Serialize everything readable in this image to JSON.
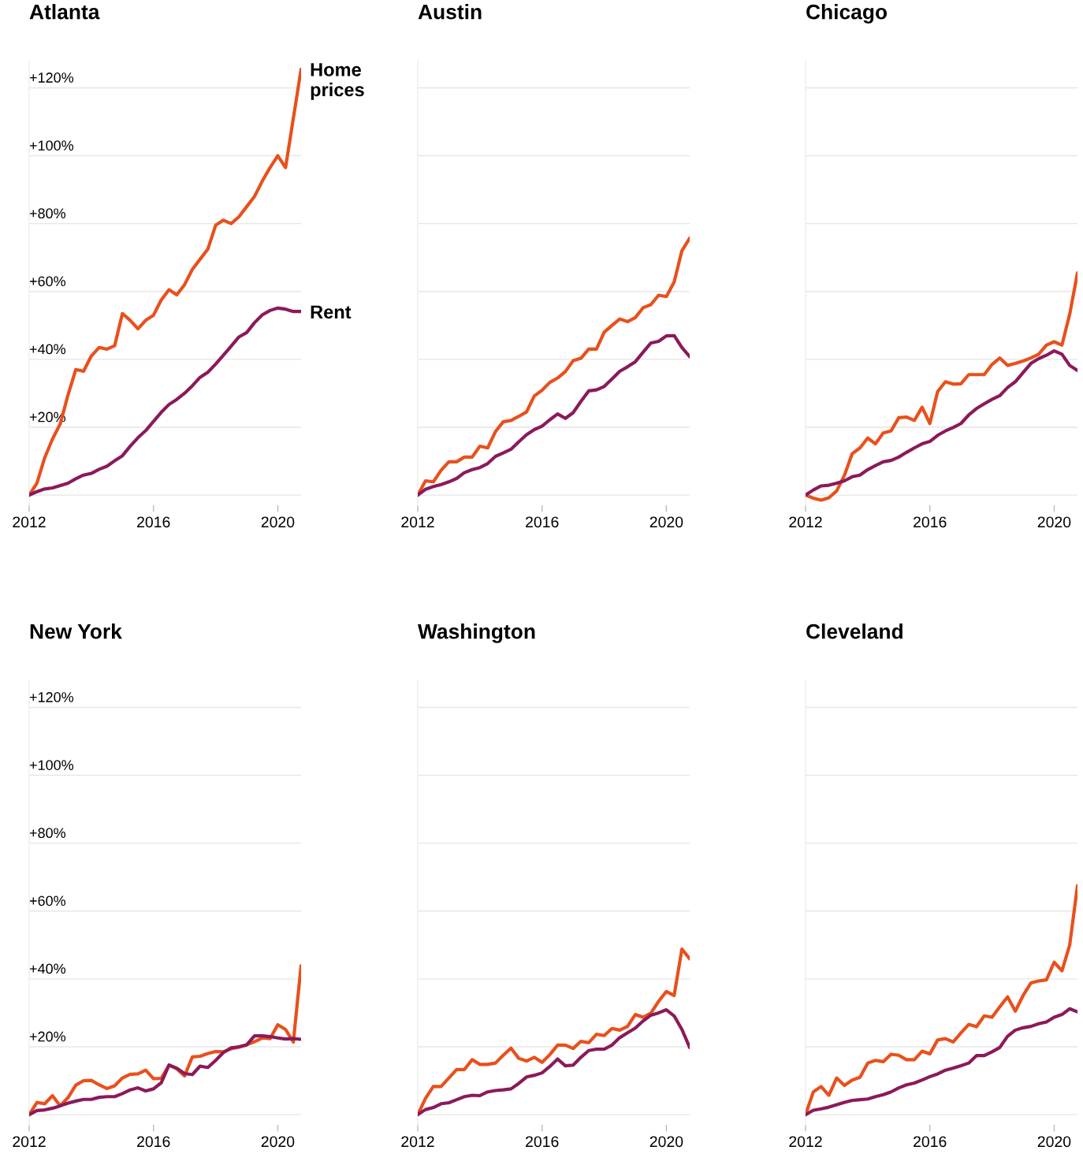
{
  "chart_data": [
    {
      "type": "line",
      "title": "Atlanta",
      "x": [
        2012,
        2012.25,
        2012.5,
        2012.75,
        2013,
        2013.25,
        2013.5,
        2013.75,
        2014,
        2014.25,
        2014.5,
        2014.75,
        2015,
        2015.25,
        2015.5,
        2015.75,
        2016,
        2016.25,
        2016.5,
        2016.75,
        2017,
        2017.25,
        2017.5,
        2017.75,
        2018,
        2018.25,
        2018.5,
        2018.75,
        2019,
        2019.25,
        2019.5,
        2019.75,
        2020,
        2020.25,
        2020.5,
        2020.75
      ],
      "series": [
        {
          "name": "Home\nprices",
          "color": "#e8501c",
          "values": [
            0,
            3.5,
            11,
            16.5,
            21,
            29.5,
            37,
            36.5,
            41,
            43.5,
            43,
            44,
            53.5,
            51.5,
            49,
            51.5,
            53,
            57.5,
            60.5,
            59,
            62,
            66.5,
            69.5,
            72.5,
            79.5,
            81,
            80,
            82,
            85,
            88,
            92.5,
            96.5,
            100,
            96.5,
            111,
            125.5
          ]
        },
        {
          "name": "Rent",
          "color": "#8b1a5a",
          "values": [
            0,
            1,
            1.8,
            2.1,
            2.8,
            3.5,
            4.8,
            5.9,
            6.4,
            7.6,
            8.5,
            10.1,
            11.6,
            14.4,
            16.9,
            19,
            21.7,
            24.4,
            26.7,
            28.2,
            30,
            32.2,
            34.7,
            36.2,
            38.6,
            41.2,
            43.9,
            46.6,
            47.9,
            50.8,
            53.1,
            54.4,
            55.1,
            54.8,
            54.1,
            54.1
          ]
        }
      ],
      "xlim": [
        2012,
        2020.75
      ],
      "xticks": [
        2012,
        2016,
        2020
      ],
      "ylim": [
        -3,
        128
      ],
      "yticks": [
        {
          "value": 0,
          "label": null
        },
        {
          "value": 20,
          "label": "+20%"
        },
        {
          "value": 40,
          "label": "+40%"
        },
        {
          "value": 60,
          "label": "+60%"
        },
        {
          "value": 80,
          "label": "+80%"
        },
        {
          "value": 100,
          "label": "+100%"
        },
        {
          "value": 120,
          "label": "+120%"
        }
      ],
      "grid": "y",
      "legend": false,
      "line_style": "solid",
      "marker": "none"
    },
    {
      "type": "line",
      "title": "Austin",
      "x": [
        2012,
        2012.25,
        2012.5,
        2012.75,
        2013,
        2013.25,
        2013.5,
        2013.75,
        2014,
        2014.25,
        2014.5,
        2014.75,
        2015,
        2015.25,
        2015.5,
        2015.75,
        2016,
        2016.25,
        2016.5,
        2016.75,
        2017,
        2017.25,
        2017.5,
        2017.75,
        2018,
        2018.25,
        2018.5,
        2018.75,
        2019,
        2019.25,
        2019.5,
        2019.75,
        2020,
        2020.25,
        2020.5,
        2020.75
      ],
      "series": [
        {
          "color": "#e8501c",
          "values": [
            0,
            4.2,
            3.9,
            7.3,
            9.8,
            9.8,
            11.2,
            11.2,
            14.4,
            13.9,
            18.7,
            21.6,
            22,
            23.2,
            24.5,
            29.2,
            30.9,
            33.2,
            34.5,
            36.4,
            39.6,
            40.3,
            43,
            43,
            48,
            50,
            51.9,
            51.1,
            52.3,
            55.2,
            56.1,
            58.9,
            58.5,
            62.8,
            72,
            75.7
          ]
        },
        {
          "color": "#8b1a5a",
          "values": [
            0,
            1.7,
            2.5,
            3.1,
            3.9,
            4.9,
            6.6,
            7.5,
            8.1,
            9.3,
            11.4,
            12.4,
            13.5,
            15.7,
            17.8,
            19.3,
            20.3,
            22.2,
            23.9,
            22.6,
            24.3,
            27.6,
            30.7,
            31,
            32,
            34.2,
            36.5,
            37.8,
            39.3,
            42.1,
            44.8,
            45.3,
            46.9,
            47,
            43.5,
            40.8
          ]
        }
      ],
      "xlim": [
        2012,
        2020.75
      ],
      "xticks": [
        2012,
        2016,
        2020
      ],
      "ylim": [
        -3,
        128
      ],
      "yticks": [
        {
          "value": 0,
          "label": null
        },
        {
          "value": 20,
          "label": null
        },
        {
          "value": 40,
          "label": null
        },
        {
          "value": 60,
          "label": null
        },
        {
          "value": 80,
          "label": null
        },
        {
          "value": 100,
          "label": null
        },
        {
          "value": 120,
          "label": null
        }
      ],
      "tick_labels": "x",
      "grid": "y",
      "legend": false,
      "line_style": "solid",
      "marker": "none"
    },
    {
      "type": "line",
      "title": "Chicago",
      "x": [
        2012,
        2012.25,
        2012.5,
        2012.75,
        2013,
        2013.25,
        2013.5,
        2013.75,
        2014,
        2014.25,
        2014.5,
        2014.75,
        2015,
        2015.25,
        2015.5,
        2015.75,
        2016,
        2016.25,
        2016.5,
        2016.75,
        2017,
        2017.25,
        2017.5,
        2017.75,
        2018,
        2018.25,
        2018.5,
        2018.75,
        2019,
        2019.25,
        2019.5,
        2019.75,
        2020,
        2020.25,
        2020.5,
        2020.75
      ],
      "series": [
        {
          "color": "#e8501c",
          "values": [
            0,
            -0.9,
            -1.5,
            -0.8,
            1.2,
            5.8,
            12.2,
            13.9,
            16.8,
            15.1,
            18.3,
            18.9,
            22.8,
            23,
            22,
            25.9,
            21.1,
            30.5,
            33.4,
            32.7,
            32.8,
            35.5,
            35.5,
            35.5,
            38.5,
            40.4,
            38.2,
            38.8,
            39.5,
            40.4,
            41.5,
            44.2,
            45.2,
            44.2,
            53.3,
            65.5
          ]
        },
        {
          "color": "#8b1a5a",
          "values": [
            0,
            1.5,
            2.7,
            2.9,
            3.5,
            4.2,
            5.4,
            5.9,
            7.5,
            8.7,
            9.8,
            10.2,
            11.2,
            12.6,
            13.9,
            15.1,
            15.8,
            17.6,
            18.9,
            19.9,
            21.1,
            23.6,
            25.5,
            26.9,
            28.2,
            29.3,
            31.7,
            33.4,
            36.1,
            38.8,
            40.2,
            41.2,
            42.5,
            41.5,
            38.2,
            36.7
          ]
        }
      ],
      "xlim": [
        2012,
        2020.75
      ],
      "xticks": [
        2012,
        2016,
        2020
      ],
      "ylim": [
        -3,
        128
      ],
      "yticks": [
        {
          "value": 0,
          "label": null
        },
        {
          "value": 20,
          "label": null
        },
        {
          "value": 40,
          "label": null
        },
        {
          "value": 60,
          "label": null
        },
        {
          "value": 80,
          "label": null
        },
        {
          "value": 100,
          "label": null
        },
        {
          "value": 120,
          "label": null
        }
      ],
      "tick_labels": "x",
      "grid": "y",
      "legend": false,
      "line_style": "solid",
      "marker": "none"
    },
    {
      "type": "line",
      "title": "New York",
      "x": [
        2012,
        2012.25,
        2012.5,
        2012.75,
        2013,
        2013.25,
        2013.5,
        2013.75,
        2014,
        2014.25,
        2014.5,
        2014.75,
        2015,
        2015.25,
        2015.5,
        2015.75,
        2016,
        2016.25,
        2016.5,
        2016.75,
        2017,
        2017.25,
        2017.5,
        2017.75,
        2018,
        2018.25,
        2018.5,
        2018.75,
        2019,
        2019.25,
        2019.5,
        2019.75,
        2020,
        2020.25,
        2020.5,
        2020.75
      ],
      "series": [
        {
          "color": "#e8501c",
          "values": [
            0,
            3.6,
            3.2,
            5.6,
            2.6,
            5,
            8.7,
            10,
            10.1,
            8.8,
            7.7,
            8.5,
            10.8,
            11.9,
            12,
            13.1,
            10.6,
            10.7,
            14.6,
            13.5,
            11.4,
            17,
            17.2,
            18,
            18.6,
            18.5,
            19.4,
            19.9,
            20.6,
            21.5,
            22.6,
            22.4,
            26.5,
            25.1,
            21.4,
            43.9
          ]
        },
        {
          "color": "#8b1a5a",
          "values": [
            0,
            1.2,
            1.4,
            1.9,
            2.6,
            3.4,
            4,
            4.5,
            4.5,
            5.1,
            5.3,
            5.3,
            6.2,
            7.3,
            7.9,
            7,
            7.6,
            9.4,
            14.6,
            13.7,
            12.1,
            11.8,
            14.3,
            13.9,
            16,
            18.3,
            19.7,
            20,
            20.6,
            23.2,
            23.2,
            23,
            22.6,
            22.3,
            22.4,
            22.2
          ]
        }
      ],
      "xlim": [
        2012,
        2020.75
      ],
      "xticks": [
        2012,
        2016,
        2020
      ],
      "ylim": [
        -3,
        128
      ],
      "yticks": [
        {
          "value": 0,
          "label": null
        },
        {
          "value": 20,
          "label": "+20%"
        },
        {
          "value": 40,
          "label": "+40%"
        },
        {
          "value": 60,
          "label": "+60%"
        },
        {
          "value": 80,
          "label": "+80%"
        },
        {
          "value": 100,
          "label": "+100%"
        },
        {
          "value": 120,
          "label": "+120%"
        }
      ],
      "grid": "y",
      "legend": false,
      "line_style": "solid",
      "marker": "none"
    },
    {
      "type": "line",
      "title": "Washington",
      "x": [
        2012,
        2012.25,
        2012.5,
        2012.75,
        2013,
        2013.25,
        2013.5,
        2013.75,
        2014,
        2014.25,
        2014.5,
        2014.75,
        2015,
        2015.25,
        2015.5,
        2015.75,
        2016,
        2016.25,
        2016.5,
        2016.75,
        2017,
        2017.25,
        2017.5,
        2017.75,
        2018,
        2018.25,
        2018.5,
        2018.75,
        2019,
        2019.25,
        2019.5,
        2019.75,
        2020,
        2020.25,
        2020.5,
        2020.75
      ],
      "series": [
        {
          "color": "#e8501c",
          "values": [
            0,
            4.8,
            8.3,
            8.3,
            10.8,
            13.3,
            13.3,
            16.2,
            14.8,
            14.8,
            15.2,
            17.5,
            19.6,
            16.6,
            15.8,
            16.9,
            15.4,
            17.7,
            20.5,
            20.5,
            19.5,
            21.6,
            21.2,
            23.7,
            23.3,
            25.4,
            24.9,
            26,
            29.5,
            28.7,
            29.9,
            33.4,
            36.3,
            35.1,
            48.8,
            45.9
          ]
        },
        {
          "color": "#8b1a5a",
          "values": [
            0,
            1.5,
            2.1,
            3.2,
            3.5,
            4.4,
            5.3,
            5.7,
            5.6,
            6.7,
            7.1,
            7.3,
            7.6,
            9.2,
            11.1,
            11.6,
            12.3,
            14.2,
            16.4,
            14.4,
            14.6,
            16.9,
            18.9,
            19.3,
            19.3,
            20.5,
            22.7,
            24.1,
            25.5,
            27.6,
            29.3,
            30,
            30.9,
            29.1,
            25.1,
            19.8
          ]
        }
      ],
      "xlim": [
        2012,
        2020.75
      ],
      "xticks": [
        2012,
        2016,
        2020
      ],
      "ylim": [
        -3,
        128
      ],
      "yticks": [
        {
          "value": 0,
          "label": null
        },
        {
          "value": 20,
          "label": null
        },
        {
          "value": 40,
          "label": null
        },
        {
          "value": 60,
          "label": null
        },
        {
          "value": 80,
          "label": null
        },
        {
          "value": 100,
          "label": null
        },
        {
          "value": 120,
          "label": null
        }
      ],
      "tick_labels": "x",
      "grid": "y",
      "legend": false,
      "line_style": "solid",
      "marker": "none"
    },
    {
      "type": "line",
      "title": "Cleveland",
      "x": [
        2012,
        2012.25,
        2012.5,
        2012.75,
        2013,
        2013.25,
        2013.5,
        2013.75,
        2014,
        2014.25,
        2014.5,
        2014.75,
        2015,
        2015.25,
        2015.5,
        2015.75,
        2016,
        2016.25,
        2016.5,
        2016.75,
        2017,
        2017.25,
        2017.5,
        2017.75,
        2018,
        2018.25,
        2018.5,
        2018.75,
        2019,
        2019.25,
        2019.5,
        2019.75,
        2020,
        2020.25,
        2020.5,
        2020.75
      ],
      "series": [
        {
          "color": "#e8501c",
          "values": [
            0,
            6.7,
            8.3,
            5.7,
            10.8,
            8.6,
            10.2,
            11,
            15.2,
            16,
            15.6,
            17.8,
            17.5,
            16.2,
            16.2,
            18.7,
            17.9,
            22,
            22.4,
            21.4,
            24.1,
            26.6,
            25.9,
            29.1,
            28.7,
            31.8,
            34.7,
            30.5,
            35.1,
            38.8,
            39.4,
            39.7,
            44.9,
            42.4,
            50,
            67.5
          ]
        },
        {
          "color": "#8b1a5a",
          "values": [
            0,
            1.3,
            1.7,
            2.2,
            2.9,
            3.6,
            4.2,
            4.4,
            4.6,
            5.3,
            5.9,
            6.7,
            7.9,
            8.8,
            9.3,
            10.2,
            11.2,
            12,
            13.1,
            13.7,
            14.4,
            15.2,
            17.4,
            17.4,
            18.5,
            19.8,
            23.1,
            24.9,
            25.6,
            26,
            26.8,
            27.3,
            28.7,
            29.5,
            31.2,
            30.3
          ]
        }
      ],
      "xlim": [
        2012,
        2020.75
      ],
      "xticks": [
        2012,
        2016,
        2020
      ],
      "ylim": [
        -3,
        128
      ],
      "yticks": [
        {
          "value": 0,
          "label": null
        },
        {
          "value": 20,
          "label": null
        },
        {
          "value": 40,
          "label": null
        },
        {
          "value": 60,
          "label": null
        },
        {
          "value": 80,
          "label": null
        },
        {
          "value": 100,
          "label": null
        },
        {
          "value": 120,
          "label": null
        }
      ],
      "tick_labels": "x",
      "grid": "y",
      "legend": false,
      "line_style": "solid",
      "marker": "none"
    }
  ]
}
